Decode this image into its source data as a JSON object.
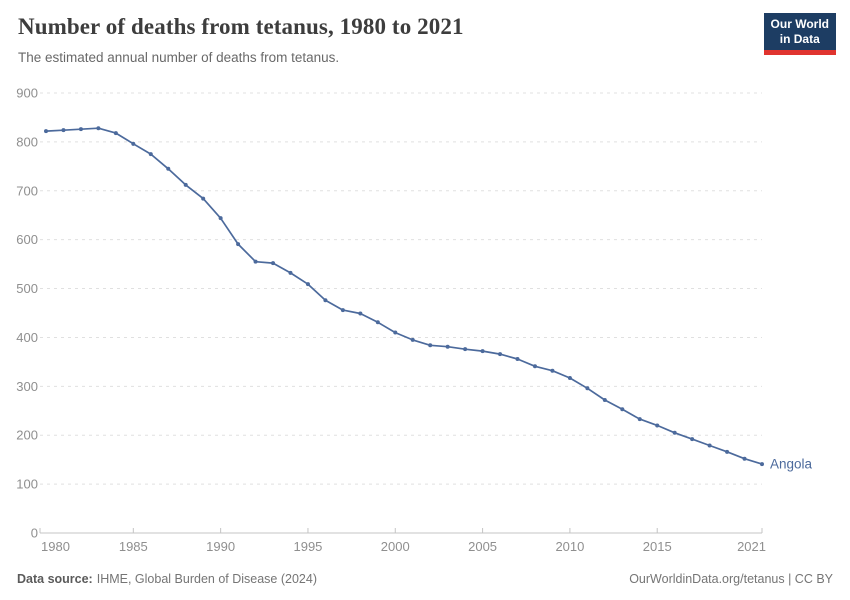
{
  "header": {
    "title": "Number of deaths from tetanus, 1980 to 2021",
    "subtitle": "The estimated annual number of deaths from tetanus.",
    "logo": {
      "line1": "Our World",
      "line2": "in Data"
    }
  },
  "footer": {
    "source_label": "Data source:",
    "source_value": "IHME, Global Burden of Disease (2024)",
    "attribution": "OurWorldinData.org/tetanus | CC BY"
  },
  "colors": {
    "series_blue": "#4c6a9c",
    "gridline": "#e0e0e0",
    "axis": "#c4c4c4",
    "tick_label": "#8f8f8f",
    "logo_navy": "#1d3d63",
    "logo_red": "#e0342f"
  },
  "chart_data": {
    "type": "line",
    "title": "Number of deaths from tetanus, 1980 to 2021",
    "xlabel": "",
    "ylabel": "",
    "ylim": [
      0,
      900
    ],
    "yticks": [
      0,
      100,
      200,
      300,
      400,
      500,
      600,
      700,
      800,
      900
    ],
    "xticks": [
      1980,
      1985,
      1990,
      1995,
      2000,
      2005,
      2010,
      2015,
      2021
    ],
    "grid": "horizontal-dashed",
    "legend_position": "end-of-line-label",
    "series": [
      {
        "name": "Angola",
        "end_label": "Angola",
        "color": "#4c6a9c",
        "x": [
          1980,
          1981,
          1982,
          1983,
          1984,
          1985,
          1986,
          1987,
          1988,
          1989,
          1990,
          1991,
          1992,
          1993,
          1994,
          1995,
          1996,
          1997,
          1998,
          1999,
          2000,
          2001,
          2002,
          2003,
          2004,
          2005,
          2006,
          2007,
          2008,
          2009,
          2010,
          2011,
          2012,
          2013,
          2014,
          2015,
          2016,
          2017,
          2018,
          2019,
          2020,
          2021
        ],
        "values": [
          822,
          824,
          826,
          828,
          818,
          796,
          775,
          745,
          712,
          684,
          644,
          591,
          555,
          552,
          532,
          509,
          476,
          456,
          449,
          431,
          410,
          395,
          384,
          381,
          376,
          372,
          366,
          356,
          341,
          332,
          317,
          296,
          272,
          253,
          233,
          220,
          205,
          192,
          179,
          166,
          152,
          141
        ]
      }
    ]
  }
}
